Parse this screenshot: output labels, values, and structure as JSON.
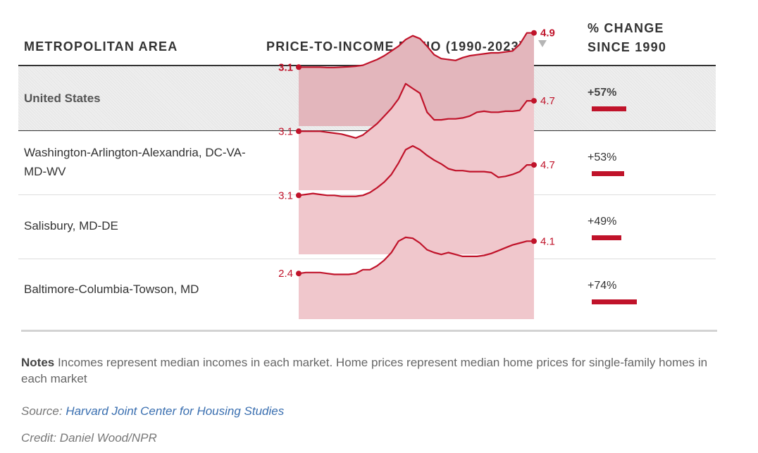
{
  "header": {
    "area_label": "METROPOLITAN AREA",
    "ratio_label": "PRICE-TO-INCOME RATIO (1990-2023)",
    "change_label_line1": "% CHANGE",
    "change_label_line2": "SINCE 1990"
  },
  "notes": {
    "label": "Notes",
    "text": " Incomes represent median incomes in each market. Home prices represent median home prices for single-family homes in each market"
  },
  "source": {
    "label": "Source: ",
    "link_text": "Harvard Joint Center for Housing Studies"
  },
  "credit": "Credit: Daniel Wood/NPR",
  "colors": {
    "accent": "#c0132a",
    "area_fill": "#f0c7cc",
    "area_fill_highlight": "#e3b6bc"
  },
  "chart_data": {
    "type": "table",
    "x": [
      1990,
      1991,
      1992,
      1993,
      1994,
      1995,
      1996,
      1997,
      1998,
      1999,
      2000,
      2001,
      2002,
      2003,
      2004,
      2005,
      2006,
      2007,
      2008,
      2009,
      2010,
      2011,
      2012,
      2013,
      2014,
      2015,
      2016,
      2017,
      2018,
      2019,
      2020,
      2021,
      2022,
      2023
    ],
    "ylim": [
      0,
      6
    ],
    "rows": [
      {
        "name": "United States",
        "start_label": "3.1",
        "end_label": "4.9",
        "pct_change": "+57%",
        "pct_value": 57,
        "highlight": true,
        "values": [
          3.1,
          3.1,
          3.1,
          3.1,
          3.08,
          3.08,
          3.1,
          3.12,
          3.15,
          3.2,
          3.35,
          3.5,
          3.7,
          3.95,
          4.2,
          4.55,
          4.75,
          4.6,
          4.2,
          3.75,
          3.55,
          3.5,
          3.45,
          3.6,
          3.7,
          3.75,
          3.8,
          3.85,
          3.85,
          3.9,
          3.95,
          4.3,
          4.9,
          4.9
        ]
      },
      {
        "name": "Washington-Arlington-Alexandria, DC-VA-MD-WV",
        "start_label": "3.1",
        "end_label": "4.7",
        "pct_change": "+53%",
        "pct_value": 53,
        "highlight": false,
        "values": [
          3.1,
          3.1,
          3.1,
          3.1,
          3.05,
          3.0,
          2.95,
          2.85,
          2.75,
          2.9,
          3.2,
          3.5,
          3.9,
          4.3,
          4.8,
          5.6,
          5.35,
          5.1,
          4.1,
          3.7,
          3.7,
          3.75,
          3.75,
          3.8,
          3.9,
          4.1,
          4.15,
          4.1,
          4.1,
          4.15,
          4.15,
          4.2,
          4.7,
          4.7
        ]
      },
      {
        "name": "Salisbury, MD-DE",
        "start_label": "3.1",
        "end_label": "4.7",
        "pct_change": "+49%",
        "pct_value": 49,
        "highlight": false,
        "values": [
          3.1,
          3.15,
          3.2,
          3.15,
          3.1,
          3.1,
          3.05,
          3.05,
          3.05,
          3.1,
          3.25,
          3.5,
          3.8,
          4.2,
          4.8,
          5.5,
          5.7,
          5.5,
          5.2,
          4.95,
          4.75,
          4.5,
          4.4,
          4.4,
          4.35,
          4.35,
          4.35,
          4.3,
          4.05,
          4.1,
          4.2,
          4.35,
          4.7,
          4.7
        ]
      },
      {
        "name": "Baltimore-Columbia-Towson, MD",
        "start_label": "2.4",
        "end_label": "4.1",
        "pct_change": "+74%",
        "pct_value": 74,
        "highlight": false,
        "values": [
          2.4,
          2.45,
          2.45,
          2.45,
          2.4,
          2.35,
          2.35,
          2.35,
          2.4,
          2.6,
          2.6,
          2.8,
          3.1,
          3.5,
          4.1,
          4.3,
          4.25,
          4.0,
          3.65,
          3.5,
          3.4,
          3.5,
          3.4,
          3.3,
          3.3,
          3.3,
          3.35,
          3.45,
          3.6,
          3.75,
          3.9,
          4.0,
          4.1,
          4.1
        ]
      }
    ]
  }
}
